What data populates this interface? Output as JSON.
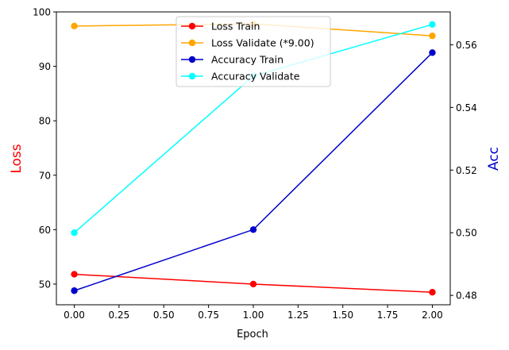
{
  "chart_data": {
    "type": "line",
    "xlabel": "Epoch",
    "ylabel_left": "Loss",
    "ylabel_right": "Acc",
    "ylabel_left_color": "#ff0000",
    "ylabel_right_color": "#0000cc",
    "xlim": [
      -0.1,
      2.1
    ],
    "ylim_left": [
      46.2,
      100.0
    ],
    "ylim_right": [
      0.477,
      0.5705
    ],
    "x_ticks": [
      0.0,
      0.25,
      0.5,
      0.75,
      1.0,
      1.25,
      1.5,
      1.75,
      2.0
    ],
    "x_tick_labels": [
      "0.00",
      "0.25",
      "0.50",
      "0.75",
      "1.00",
      "1.25",
      "1.50",
      "1.75",
      "2.00"
    ],
    "y_left_ticks": [
      50,
      60,
      70,
      80,
      90,
      100
    ],
    "y_left_tick_labels": [
      "50",
      "60",
      "70",
      "80",
      "90",
      "100"
    ],
    "y_right_ticks": [
      0.48,
      0.5,
      0.52,
      0.54,
      0.56
    ],
    "y_right_tick_labels": [
      "0.48",
      "0.50",
      "0.52",
      "0.54",
      "0.56"
    ],
    "grid": false,
    "legend_placement": "top-center",
    "x": [
      0,
      1,
      2
    ],
    "series": [
      {
        "name": "Loss Train",
        "axis": "left",
        "color": "#ff0000",
        "values": [
          51.8,
          50.0,
          48.5
        ]
      },
      {
        "name": "Loss Validate (*9.00)",
        "axis": "left",
        "color": "#ffa500",
        "values": [
          97.4,
          97.8,
          95.6
        ]
      },
      {
        "name": "Accuracy Train",
        "axis": "right",
        "color": "#0000cc",
        "values": [
          0.4815,
          0.501,
          0.5575
        ]
      },
      {
        "name": "Accuracy Validate",
        "axis": "right",
        "color": "#00ffff",
        "values": [
          0.5,
          0.55,
          0.5665
        ]
      }
    ]
  }
}
